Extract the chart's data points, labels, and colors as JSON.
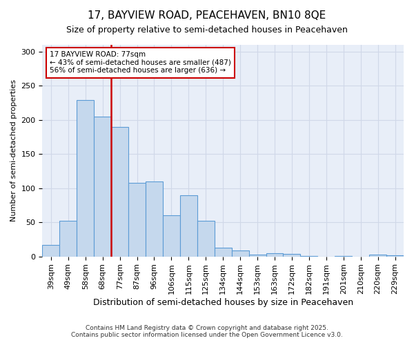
{
  "title1": "17, BAYVIEW ROAD, PEACEHAVEN, BN10 8QE",
  "title2": "Size of property relative to semi-detached houses in Peacehaven",
  "xlabel": "Distribution of semi-detached houses by size in Peacehaven",
  "ylabel": "Number of semi-detached properties",
  "categories": [
    "39sqm",
    "49sqm",
    "58sqm",
    "68sqm",
    "77sqm",
    "87sqm",
    "96sqm",
    "106sqm",
    "115sqm",
    "125sqm",
    "134sqm",
    "144sqm",
    "153sqm",
    "163sqm",
    "172sqm",
    "182sqm",
    "191sqm",
    "201sqm",
    "210sqm",
    "220sqm",
    "229sqm"
  ],
  "values": [
    17,
    52,
    229,
    205,
    190,
    108,
    110,
    60,
    90,
    52,
    13,
    9,
    3,
    5,
    4,
    1,
    0,
    1,
    0,
    3,
    2
  ],
  "bar_color": "#c5d8ed",
  "bar_edge_color": "#5b9bd5",
  "highlight_line_color": "#cc0000",
  "annotation_title": "17 BAYVIEW ROAD: 77sqm",
  "annotation_line1": "← 43% of semi-detached houses are smaller (487)",
  "annotation_line2": "56% of semi-detached houses are larger (636) →",
  "annotation_box_color": "#ffffff",
  "annotation_box_edge": "#cc0000",
  "footer1": "Contains HM Land Registry data © Crown copyright and database right 2025.",
  "footer2": "Contains public sector information licensed under the Open Government Licence v3.0.",
  "ylim": [
    0,
    310
  ],
  "yticks": [
    0,
    50,
    100,
    150,
    200,
    250,
    300
  ],
  "grid_color": "#d0d8e8",
  "bg_color": "#e8eef8"
}
